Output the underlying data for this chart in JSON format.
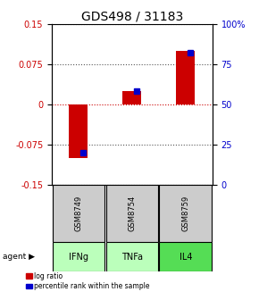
{
  "title": "GDS498 / 31183",
  "samples": [
    "GSM8749",
    "GSM8754",
    "GSM8759"
  ],
  "agents": [
    "IFNg",
    "TNFa",
    "IL4"
  ],
  "log_ratios": [
    -0.1,
    0.025,
    0.1
  ],
  "percentile_ranks": [
    20,
    58,
    82
  ],
  "left_ylim": [
    -0.15,
    0.15
  ],
  "left_yticks": [
    -0.15,
    -0.075,
    0,
    0.075,
    0.15
  ],
  "left_ytick_labels": [
    "-0.15",
    "-0.075",
    "0",
    "0.075",
    "0.15"
  ],
  "right_ylim": [
    0,
    100
  ],
  "right_yticks": [
    0,
    25,
    50,
    75,
    100
  ],
  "right_ytick_labels": [
    "0",
    "25",
    "50",
    "75",
    "100%"
  ],
  "bar_color_red": "#cc0000",
  "bar_color_blue": "#0000cc",
  "zero_line_color": "#cc0000",
  "grid_color": "#555555",
  "sample_bg_color": "#cccccc",
  "agent_bg_color_light": "#bbffbb",
  "agent_bg_color_dark": "#55dd55",
  "bar_width": 0.35,
  "legend_red": "log ratio",
  "legend_blue": "percentile rank within the sample",
  "title_fontsize": 10,
  "tick_fontsize": 7,
  "label_fontsize": 7
}
